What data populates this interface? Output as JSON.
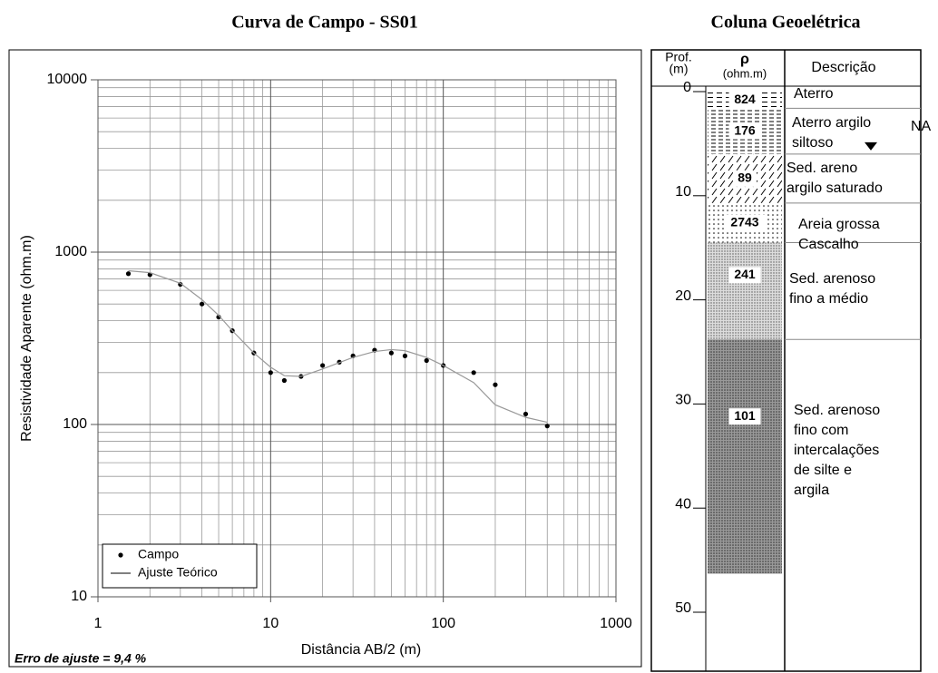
{
  "chart_data": {
    "type": "scatter",
    "title": "Curva de Campo - SS01",
    "x_label": "Distância AB/2 (m)",
    "y_label": "Resistividade Aparente (ohm.m)",
    "annotation": "Erro de ajuste = 9,4 %",
    "log_x": true,
    "log_y": true,
    "grid": true,
    "legend": "lower left",
    "xlim": [
      1,
      1000
    ],
    "ylim": [
      10,
      10000
    ],
    "xticks": [
      1,
      10,
      100,
      1000
    ],
    "yticks": [
      10,
      100,
      1000,
      10000
    ],
    "xminorticks": [
      2,
      3,
      4,
      5,
      6,
      7,
      8,
      9,
      20,
      30,
      40,
      50,
      60,
      70,
      80,
      90,
      200,
      300,
      400,
      500,
      600,
      700,
      800,
      900
    ],
    "yminorticks": [
      20,
      30,
      40,
      50,
      60,
      70,
      80,
      90,
      200,
      300,
      400,
      500,
      600,
      700,
      800,
      900,
      2000,
      3000,
      4000,
      5000,
      6000,
      7000,
      8000,
      9000
    ],
    "series": [
      {
        "name": "Campo",
        "type": "scatter",
        "color": "#000000",
        "x": [
          1.5,
          2,
          3,
          4,
          5,
          6,
          8,
          10,
          12,
          15,
          20,
          25,
          30,
          40,
          50,
          60,
          80,
          100,
          150,
          200,
          300,
          400
        ],
        "values": [
          750,
          740,
          650,
          500,
          420,
          350,
          260,
          200,
          180,
          190,
          220,
          230,
          250,
          270,
          260,
          250,
          235,
          220,
          200,
          170,
          115,
          98
        ]
      },
      {
        "name": "Ajuste Teórico",
        "type": "line",
        "color": "#999999",
        "x": [
          1.5,
          2,
          3,
          4,
          5,
          6,
          8,
          10,
          12,
          15,
          20,
          30,
          40,
          50,
          60,
          80,
          100,
          150,
          200,
          300,
          400
        ],
        "values": [
          780,
          760,
          660,
          530,
          430,
          350,
          260,
          215,
          192,
          190,
          210,
          245,
          265,
          272,
          268,
          245,
          220,
          175,
          130,
          110,
          103
        ]
      }
    ]
  },
  "column": {
    "title": "Coluna Geoelétrica",
    "depth_header": [
      "Prof.",
      "(m)"
    ],
    "rho_header": [
      "ρ",
      "(ohm.m)"
    ],
    "description_header": "Descrição",
    "ylim": [
      0,
      50
    ],
    "yticks": [
      0,
      10,
      20,
      30,
      40,
      50
    ],
    "na": {
      "label": "NA",
      "depth": 5.3
    },
    "layers": [
      {
        "top": 0,
        "bottom": 1.6,
        "rho": 824,
        "description": [
          "Aterro"
        ]
      },
      {
        "top": 1.6,
        "bottom": 6,
        "rho": 176,
        "description": [
          "Aterro argilo",
          "siltoso"
        ]
      },
      {
        "top": 6,
        "bottom": 10.7,
        "rho": 89,
        "description": [
          "Sed. areno",
          "argilo saturado"
        ]
      },
      {
        "top": 10.7,
        "bottom": 14.5,
        "rho": 2743,
        "description": [
          "Areia grossa",
          "Cascalho"
        ]
      },
      {
        "top": 14.5,
        "bottom": 23.8,
        "rho": 241,
        "description": [
          "Sed. arenoso",
          "fino a médio"
        ]
      },
      {
        "top": 23.8,
        "bottom": 46.3,
        "rho": 101,
        "description": [
          "Sed. arenoso",
          "fino com",
          "intercalações",
          "de silte e",
          "argila"
        ]
      }
    ]
  }
}
